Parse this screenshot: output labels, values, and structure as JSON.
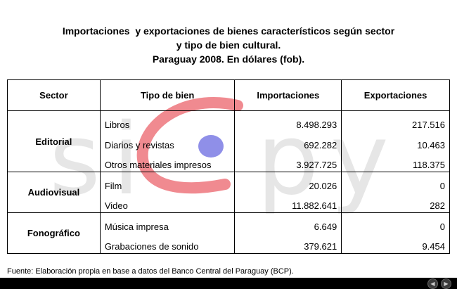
{
  "title": {
    "line1": "Importaciones  y exportaciones de bienes característicos según sector",
    "line2": "y tipo de bien cultural.",
    "line3": "Paraguay 2008. En dólares (fob)."
  },
  "table": {
    "headers": [
      "Sector",
      "Tipo de bien",
      "Importaciones",
      "Exportaciones"
    ],
    "sectors": [
      {
        "name": "Editorial",
        "rows": [
          {
            "tipo": "Libros",
            "importaciones": "8.498.293",
            "exportaciones": "217.516"
          },
          {
            "tipo": "Diarios y revistas",
            "importaciones": "692.282",
            "exportaciones": "10.463"
          },
          {
            "tipo": "Otros materiales impresos",
            "importaciones": "3.927.725",
            "exportaciones": "118.375"
          }
        ]
      },
      {
        "name": "Audiovisual",
        "rows": [
          {
            "tipo": "Film",
            "importaciones": "20.026",
            "exportaciones": "0"
          },
          {
            "tipo": "Video",
            "importaciones": "11.882.641",
            "exportaciones": "282"
          }
        ]
      },
      {
        "name": "Fonográfico",
        "rows": [
          {
            "tipo": "Música impresa",
            "importaciones": "6.649",
            "exportaciones": "0"
          },
          {
            "tipo": "Grabaciones de sonido",
            "importaciones": "379.621",
            "exportaciones": "9.454"
          }
        ]
      }
    ]
  },
  "watermark": {
    "text": "sicpy",
    "arc_color": "#f08a90",
    "dot_color": "#8f8fe8"
  },
  "footer": "Fuente: Elaboración propia en base a datos del Banco Central del Paraguay (BCP).",
  "nav": {
    "prev_icon": "prev-slide-icon",
    "next_icon": "next-slide-icon",
    "prev_glyph": "◀",
    "next_glyph": "▶"
  }
}
